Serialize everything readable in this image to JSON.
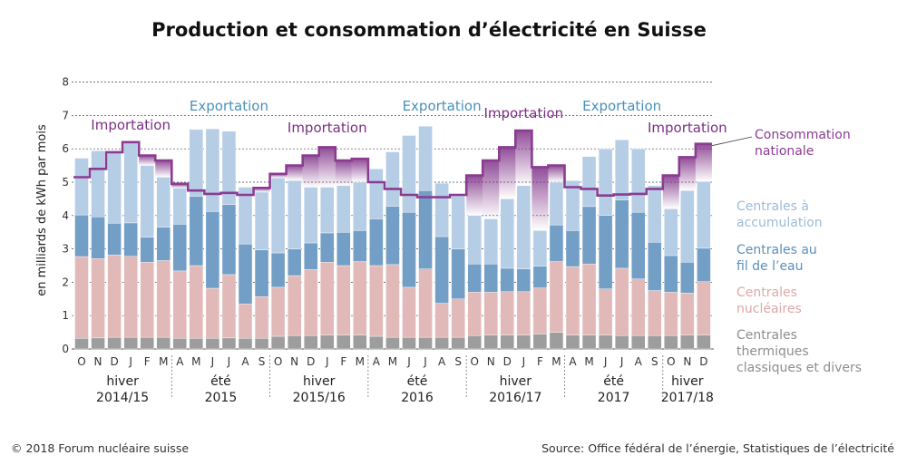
{
  "title": "Production et consommation d’électricité en Suisse",
  "footer": {
    "copyright": "© 2018 Forum nucléaire suisse",
    "source": "Source: Office fédéral de l’énergie, Statistiques de l’électricité"
  },
  "colors": {
    "thermal": "#9d9d9d",
    "nuclear": "#e2b9b9",
    "runofriver": "#739fc6",
    "storage": "#b6cde6",
    "consumption": "#8a3c91",
    "import_fill": "#7d2e86",
    "export_text": "#4a90b8",
    "import_text": "#7a2f82",
    "grid": "#444444"
  },
  "chart_data": {
    "type": "bar",
    "stacked": true,
    "ylabel": "en milliards de kWh par mois",
    "ylim": [
      0,
      8
    ],
    "yticks": [
      0,
      1,
      2,
      3,
      4,
      5,
      6,
      7,
      8
    ],
    "grid": true,
    "categories": [
      "O",
      "N",
      "D",
      "J",
      "F",
      "M",
      "A",
      "M",
      "J",
      "J",
      "A",
      "S",
      "O",
      "N",
      "D",
      "J",
      "F",
      "M",
      "A",
      "M",
      "J",
      "J",
      "A",
      "S",
      "O",
      "N",
      "D",
      "J",
      "F",
      "M",
      "A",
      "M",
      "J",
      "J",
      "A",
      "S",
      "O",
      "N",
      "D"
    ],
    "seasons": [
      {
        "line1": "hiver",
        "line2": "2014/15",
        "start": 0,
        "end": 5
      },
      {
        "line1": "été",
        "line2": "2015",
        "start": 6,
        "end": 11
      },
      {
        "line1": "hiver",
        "line2": "2015/16",
        "start": 12,
        "end": 17
      },
      {
        "line1": "été",
        "line2": "2016",
        "start": 18,
        "end": 23
      },
      {
        "line1": "hiver",
        "line2": "2016/17",
        "start": 24,
        "end": 29
      },
      {
        "line1": "été",
        "line2": "2017",
        "start": 30,
        "end": 35
      },
      {
        "line1": "hiver",
        "line2": "2017/18",
        "start": 36,
        "end": 38
      }
    ],
    "series": [
      {
        "name": "Centrales thermiques classiques et divers",
        "key": "thermal",
        "values": [
          0.32,
          0.33,
          0.35,
          0.35,
          0.35,
          0.35,
          0.32,
          0.32,
          0.32,
          0.33,
          0.32,
          0.32,
          0.38,
          0.4,
          0.4,
          0.42,
          0.42,
          0.42,
          0.38,
          0.35,
          0.35,
          0.35,
          0.35,
          0.35,
          0.4,
          0.42,
          0.42,
          0.42,
          0.45,
          0.5,
          0.42,
          0.42,
          0.42,
          0.4,
          0.4,
          0.4,
          0.4,
          0.42,
          0.42
        ]
      },
      {
        "name": "Centrales nucléaires",
        "key": "nuclear",
        "values": [
          2.45,
          2.38,
          2.47,
          2.43,
          2.25,
          2.3,
          2.02,
          2.18,
          1.5,
          1.9,
          1.03,
          1.25,
          1.47,
          1.8,
          1.98,
          2.18,
          2.08,
          2.2,
          2.12,
          2.18,
          1.5,
          2.05,
          1.02,
          1.15,
          1.3,
          1.28,
          1.3,
          1.3,
          1.38,
          2.12,
          2.05,
          2.13,
          1.38,
          2.02,
          1.7,
          1.35,
          1.3,
          1.26,
          1.6
        ]
      },
      {
        "name": "Centrales au fil de l’eau",
        "key": "runofriver",
        "values": [
          1.25,
          1.25,
          0.95,
          1.0,
          0.75,
          1.0,
          1.4,
          2.08,
          2.3,
          2.1,
          1.8,
          1.4,
          1.03,
          0.8,
          0.8,
          0.88,
          1.0,
          0.93,
          1.4,
          1.75,
          2.25,
          2.35,
          2.0,
          1.5,
          0.85,
          0.85,
          0.7,
          0.68,
          0.65,
          1.1,
          1.08,
          1.72,
          2.2,
          2.05,
          2.0,
          1.45,
          1.1,
          0.92,
          1.0
        ]
      },
      {
        "name": "Centrales à accumulation",
        "key": "storage",
        "values": [
          1.7,
          1.98,
          2.13,
          2.4,
          2.15,
          1.5,
          1.08,
          2.0,
          2.48,
          2.2,
          1.7,
          1.73,
          2.25,
          2.05,
          1.67,
          1.37,
          1.4,
          1.45,
          1.5,
          1.63,
          2.3,
          1.93,
          1.6,
          1.6,
          1.45,
          1.35,
          2.08,
          2.5,
          1.07,
          1.28,
          1.5,
          1.5,
          2.0,
          1.8,
          1.9,
          1.7,
          1.4,
          2.15,
          2.0
        ]
      }
    ],
    "consumption": {
      "name": "Consommation nationale",
      "values": [
        5.15,
        5.4,
        5.9,
        6.2,
        5.8,
        5.65,
        4.95,
        4.75,
        4.65,
        4.68,
        4.62,
        4.83,
        5.25,
        5.5,
        5.8,
        6.05,
        5.65,
        5.7,
        5.0,
        4.8,
        4.62,
        4.55,
        4.55,
        4.62,
        5.2,
        5.65,
        6.05,
        6.55,
        5.45,
        5.5,
        4.85,
        4.8,
        4.6,
        4.63,
        4.65,
        4.8,
        5.2,
        5.75,
        6.15
      ]
    },
    "annotations": [
      {
        "text": "Exportation",
        "kind": "export",
        "near_month": 9
      },
      {
        "text": "Exportation",
        "kind": "export",
        "near_month": 22
      },
      {
        "text": "Exportation",
        "kind": "export",
        "near_month": 33
      },
      {
        "text": "Importation",
        "kind": "import",
        "near_month": 3
      },
      {
        "text": "Importation",
        "kind": "import",
        "near_month": 15
      },
      {
        "text": "Importation",
        "kind": "import",
        "near_month": 27
      },
      {
        "text": "Importation",
        "kind": "import",
        "near_month": 37
      }
    ],
    "legend": [
      {
        "key": "consumption",
        "lines": [
          "Consommation",
          "nationale"
        ]
      },
      {
        "key": "storage",
        "lines": [
          "Centrales à",
          "accumulation"
        ]
      },
      {
        "key": "runofriver",
        "lines": [
          "Centrales au",
          "fil de l’eau"
        ]
      },
      {
        "key": "nuclear",
        "lines": [
          "Centrales",
          "nucléaires"
        ]
      },
      {
        "key": "thermal",
        "lines": [
          "Centrales",
          "thermiques",
          "classiques et divers"
        ]
      }
    ],
    "legend_position": "right"
  }
}
